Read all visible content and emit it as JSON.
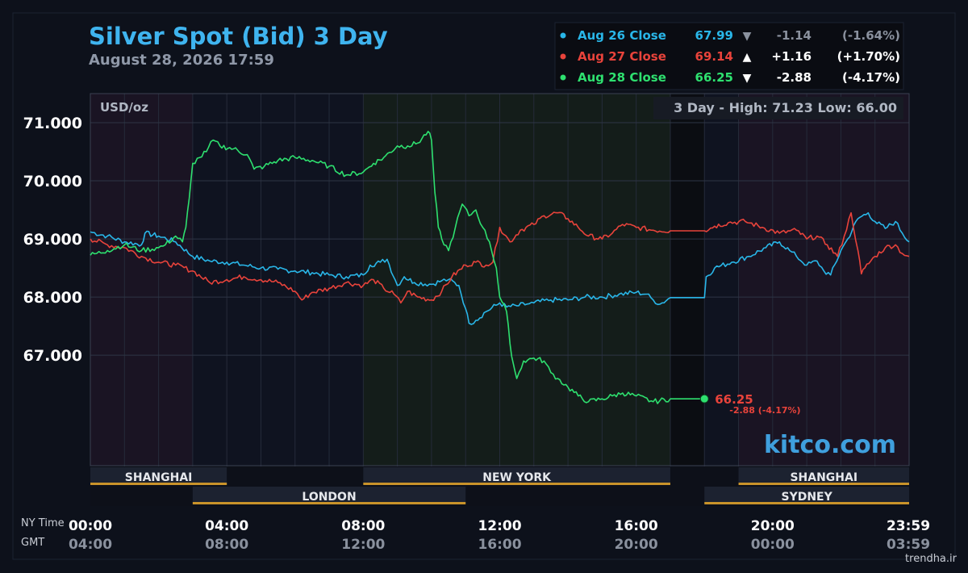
{
  "header": {
    "title": "Silver Spot (Bid) 3 Day",
    "datetime": "August 28, 2026 17:59"
  },
  "colors": {
    "background": "#0d111b",
    "title": "#3fb4ef",
    "aug26": "#29b6e8",
    "aug27": "#e8433b",
    "aug28": "#2ee06f",
    "session_bar": "#c9932a",
    "watermark": "#3f9fdd"
  },
  "legend": {
    "rows": [
      {
        "label": "Aug 26 Close",
        "price": "67.99",
        "arrow": "▼",
        "change": "-1.14",
        "pct": "(-1.64%)",
        "color_key": "aug26",
        "dim": true
      },
      {
        "label": "Aug 27 Close",
        "price": "69.14",
        "arrow": "▲",
        "change": "+1.16",
        "pct": "(+1.70%)",
        "color_key": "aug27",
        "dim": false
      },
      {
        "label": "Aug 28 Close",
        "price": "66.25",
        "arrow": "▼",
        "change": "-2.88",
        "pct": "(-4.17%)",
        "color_key": "aug28",
        "dim": false
      }
    ]
  },
  "plot": {
    "unit_label": "USD/oz",
    "high_low_label": "3 Day - High: 71.23  Low: 66.00",
    "last_price": "66.25",
    "last_change": "-2.88 (-4.17%)",
    "watermark": "kitco.com"
  },
  "sessions": {
    "row1": [
      {
        "name": "SHANGHAI",
        "start": 0,
        "end": 4
      },
      {
        "name": "NEW YORK",
        "start": 8,
        "end": 17
      },
      {
        "name": "SHANGHAI",
        "start": 19,
        "end": 24
      }
    ],
    "row2": [
      {
        "name": "LONDON",
        "start": 3,
        "end": 11
      },
      {
        "name": "SYDNEY",
        "start": 18,
        "end": 24
      }
    ]
  },
  "x_axis": {
    "ny_label": "NY Time",
    "gmt_label": "GMT",
    "ticks": [
      {
        "h": 0,
        "ny": "00:00",
        "gmt": "04:00"
      },
      {
        "h": 4,
        "ny": "04:00",
        "gmt": "08:00"
      },
      {
        "h": 8,
        "ny": "08:00",
        "gmt": "12:00"
      },
      {
        "h": 12,
        "ny": "12:00",
        "gmt": "16:00"
      },
      {
        "h": 16,
        "ny": "16:00",
        "gmt": "20:00"
      },
      {
        "h": 20,
        "ny": "20:00",
        "gmt": "00:00"
      },
      {
        "h": 23.98,
        "ny": "23:59",
        "gmt": "03:59"
      }
    ]
  },
  "footer": {
    "credit": "trendha.ir"
  },
  "chart_data": {
    "type": "line",
    "title": "Silver Spot (Bid) 3 Day",
    "ylabel": "USD/oz",
    "ylim": [
      65.1,
      71.5
    ],
    "xlim": [
      0,
      24
    ],
    "yticks": [
      {
        "v": 71,
        "label": "71.000"
      },
      {
        "v": 70,
        "label": "70.000"
      },
      {
        "v": 69,
        "label": "69.000"
      },
      {
        "v": 68,
        "label": "68.000"
      },
      {
        "v": 67,
        "label": "67.000"
      }
    ],
    "grid": true,
    "series": [
      {
        "name": "Aug 26 Close",
        "color_key": "aug26",
        "points": [
          [
            0,
            69.12
          ],
          [
            0.5,
            69.05
          ],
          [
            1,
            68.95
          ],
          [
            1.5,
            68.9
          ],
          [
            1.6,
            69.1
          ],
          [
            2,
            69.05
          ],
          [
            2.5,
            68.95
          ],
          [
            3,
            68.7
          ],
          [
            3.5,
            68.62
          ],
          [
            4,
            68.6
          ],
          [
            4.5,
            68.55
          ],
          [
            5,
            68.5
          ],
          [
            5.5,
            68.48
          ],
          [
            6,
            68.45
          ],
          [
            6.5,
            68.42
          ],
          [
            7,
            68.38
          ],
          [
            7.5,
            68.35
          ],
          [
            8,
            68.38
          ],
          [
            8.2,
            68.55
          ],
          [
            8.5,
            68.6
          ],
          [
            8.7,
            68.65
          ],
          [
            9,
            68.2
          ],
          [
            9.2,
            68.35
          ],
          [
            9.5,
            68.25
          ],
          [
            10,
            68.22
          ],
          [
            10.3,
            68.28
          ],
          [
            10.5,
            68.3
          ],
          [
            10.8,
            68.2
          ],
          [
            11,
            67.8
          ],
          [
            11.1,
            67.55
          ],
          [
            11.3,
            67.6
          ],
          [
            11.6,
            67.75
          ],
          [
            12,
            67.9
          ],
          [
            12.2,
            67.83
          ],
          [
            12.5,
            67.85
          ],
          [
            12.8,
            67.88
          ],
          [
            13,
            67.9
          ],
          [
            13.5,
            67.95
          ],
          [
            14,
            67.95
          ],
          [
            14.5,
            68.0
          ],
          [
            15,
            68.0
          ],
          [
            15.5,
            68.05
          ],
          [
            16,
            68.08
          ],
          [
            16.3,
            68.05
          ],
          [
            16.5,
            67.95
          ],
          [
            16.7,
            67.88
          ],
          [
            17,
            67.99
          ],
          [
            17.5,
            67.99
          ],
          [
            18,
            67.99
          ],
          [
            18.05,
            68.35
          ],
          [
            18.3,
            68.5
          ],
          [
            18.8,
            68.6
          ],
          [
            19.3,
            68.7
          ],
          [
            19.8,
            68.85
          ],
          [
            20.2,
            68.95
          ],
          [
            20.5,
            68.8
          ],
          [
            20.7,
            68.7
          ],
          [
            21,
            68.55
          ],
          [
            21.3,
            68.62
          ],
          [
            21.5,
            68.45
          ],
          [
            21.7,
            68.38
          ],
          [
            22,
            68.8
          ],
          [
            22.2,
            69.0
          ],
          [
            22.5,
            69.35
          ],
          [
            22.8,
            69.45
          ],
          [
            23,
            69.3
          ],
          [
            23.3,
            69.18
          ],
          [
            23.6,
            69.3
          ],
          [
            23.8,
            69.1
          ],
          [
            24,
            68.95
          ]
        ]
      },
      {
        "name": "Aug 27 Close",
        "color_key": "aug27",
        "points": [
          [
            0,
            69.0
          ],
          [
            0.5,
            68.9
          ],
          [
            1,
            68.85
          ],
          [
            1.5,
            68.7
          ],
          [
            2,
            68.6
          ],
          [
            2.5,
            68.55
          ],
          [
            3,
            68.45
          ],
          [
            3.5,
            68.25
          ],
          [
            4,
            68.3
          ],
          [
            4.5,
            68.35
          ],
          [
            5,
            68.3
          ],
          [
            5.5,
            68.25
          ],
          [
            6,
            68.1
          ],
          [
            6.2,
            67.95
          ],
          [
            6.5,
            68.08
          ],
          [
            7,
            68.15
          ],
          [
            7.5,
            68.25
          ],
          [
            8,
            68.2
          ],
          [
            8.3,
            68.3
          ],
          [
            8.6,
            68.15
          ],
          [
            8.9,
            68.05
          ],
          [
            9.1,
            67.9
          ],
          [
            9.3,
            68.1
          ],
          [
            9.6,
            68.0
          ],
          [
            10,
            67.95
          ],
          [
            10.3,
            68.1
          ],
          [
            10.6,
            68.35
          ],
          [
            11,
            68.55
          ],
          [
            11.3,
            68.6
          ],
          [
            11.6,
            68.55
          ],
          [
            11.8,
            68.6
          ],
          [
            12,
            69.2
          ],
          [
            12.3,
            68.95
          ],
          [
            12.6,
            69.15
          ],
          [
            13,
            69.25
          ],
          [
            13.3,
            69.4
          ],
          [
            13.7,
            69.45
          ],
          [
            14,
            69.35
          ],
          [
            14.3,
            69.2
          ],
          [
            14.6,
            69.05
          ],
          [
            15,
            69.0
          ],
          [
            15.3,
            69.1
          ],
          [
            15.6,
            69.25
          ],
          [
            16,
            69.2
          ],
          [
            16.5,
            69.15
          ],
          [
            17,
            69.14
          ],
          [
            17.5,
            69.14
          ],
          [
            18,
            69.14
          ],
          [
            18.3,
            69.22
          ],
          [
            18.7,
            69.28
          ],
          [
            19.2,
            69.3
          ],
          [
            19.7,
            69.2
          ],
          [
            20.2,
            69.1
          ],
          [
            20.7,
            69.15
          ],
          [
            21,
            69.0
          ],
          [
            21.3,
            69.05
          ],
          [
            21.6,
            68.9
          ],
          [
            21.9,
            68.7
          ],
          [
            22.1,
            69.05
          ],
          [
            22.3,
            69.45
          ],
          [
            22.5,
            68.8
          ],
          [
            22.6,
            68.4
          ],
          [
            22.7,
            68.5
          ],
          [
            23,
            68.7
          ],
          [
            23.3,
            68.85
          ],
          [
            23.6,
            68.9
          ],
          [
            23.8,
            68.75
          ],
          [
            24,
            68.7
          ]
        ]
      },
      {
        "name": "Aug 28 Close",
        "color_key": "aug28",
        "points": [
          [
            0,
            68.72
          ],
          [
            0.5,
            68.8
          ],
          [
            1,
            68.9
          ],
          [
            1.5,
            68.8
          ],
          [
            2,
            68.85
          ],
          [
            2.2,
            68.9
          ],
          [
            2.5,
            69.05
          ],
          [
            2.7,
            68.95
          ],
          [
            2.8,
            69.2
          ],
          [
            2.9,
            69.7
          ],
          [
            3,
            70.3
          ],
          [
            3.2,
            70.4
          ],
          [
            3.4,
            70.5
          ],
          [
            3.6,
            70.7
          ],
          [
            3.8,
            70.6
          ],
          [
            4.2,
            70.55
          ],
          [
            4.6,
            70.45
          ],
          [
            4.8,
            70.2
          ],
          [
            5.1,
            70.25
          ],
          [
            5.5,
            70.35
          ],
          [
            6,
            70.4
          ],
          [
            6.5,
            70.35
          ],
          [
            7,
            70.25
          ],
          [
            7.5,
            70.1
          ],
          [
            8,
            70.15
          ],
          [
            8.3,
            70.3
          ],
          [
            8.6,
            70.4
          ],
          [
            9,
            70.6
          ],
          [
            9.3,
            70.6
          ],
          [
            9.6,
            70.65
          ],
          [
            9.9,
            70.85
          ],
          [
            10,
            70.7
          ],
          [
            10.1,
            69.8
          ],
          [
            10.2,
            69.2
          ],
          [
            10.3,
            69.0
          ],
          [
            10.5,
            68.8
          ],
          [
            10.7,
            69.2
          ],
          [
            10.9,
            69.6
          ],
          [
            11.1,
            69.4
          ],
          [
            11.3,
            69.5
          ],
          [
            11.5,
            69.2
          ],
          [
            11.7,
            68.95
          ],
          [
            11.9,
            68.5
          ],
          [
            12,
            68.0
          ],
          [
            12.2,
            67.75
          ],
          [
            12.3,
            67.2
          ],
          [
            12.4,
            66.85
          ],
          [
            12.5,
            66.6
          ],
          [
            12.7,
            66.9
          ],
          [
            13,
            66.95
          ],
          [
            13.3,
            66.9
          ],
          [
            13.5,
            66.7
          ],
          [
            13.7,
            66.6
          ],
          [
            14,
            66.45
          ],
          [
            14.3,
            66.3
          ],
          [
            14.6,
            66.2
          ],
          [
            15,
            66.25
          ],
          [
            15.3,
            66.3
          ],
          [
            15.6,
            66.35
          ],
          [
            16,
            66.3
          ],
          [
            16.5,
            66.2
          ],
          [
            17,
            66.25
          ],
          [
            17.5,
            66.25
          ],
          [
            18,
            66.25
          ]
        ]
      }
    ]
  }
}
